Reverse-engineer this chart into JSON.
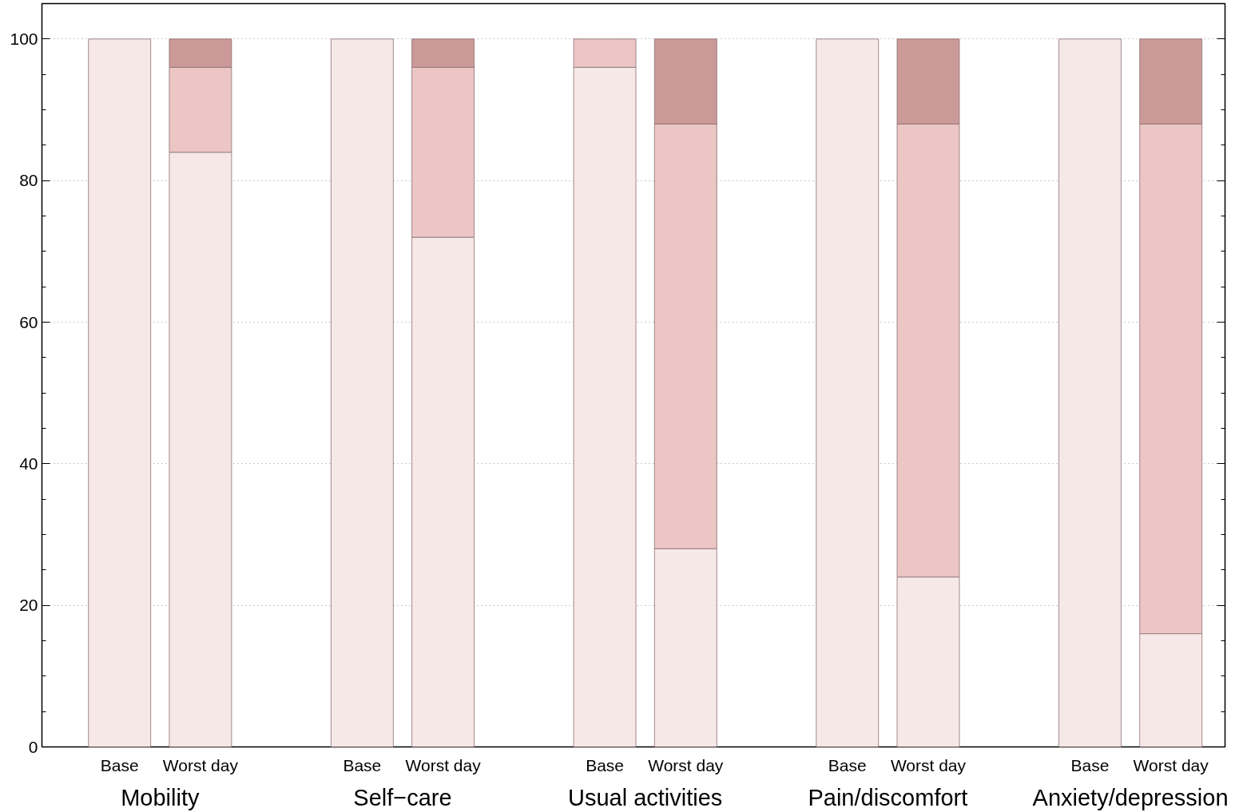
{
  "chart_data": {
    "type": "bar",
    "stacked": true,
    "categories": [
      "Base",
      "Worst day",
      "Base",
      "Worst day",
      "Base",
      "Worst day",
      "Base",
      "Worst day",
      "Base",
      "Worst day"
    ],
    "series": [
      {
        "color": "#f7e8e8",
        "values": [
          100,
          84,
          100,
          72,
          96,
          28,
          100,
          24,
          100,
          16
        ]
      },
      {
        "color": "#ecc5c5",
        "values": [
          0,
          12,
          0,
          24,
          4,
          60,
          0,
          64,
          0,
          72
        ]
      },
      {
        "color": "#cc9999",
        "values": [
          0,
          4,
          0,
          4,
          0,
          12,
          0,
          12,
          0,
          12
        ]
      }
    ],
    "annotations": [
      "Mobility",
      "Self−care",
      "Usual activities",
      "Pain/discomfort",
      "Anxiety/depression"
    ],
    "ylim": [
      0,
      105
    ],
    "yticks": [
      0,
      20,
      40,
      60,
      80,
      100
    ],
    "grid": "y"
  }
}
